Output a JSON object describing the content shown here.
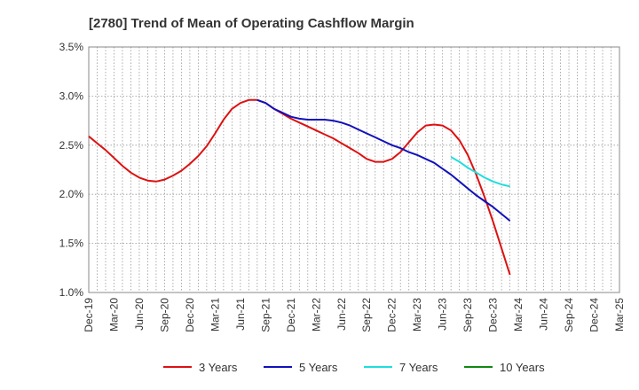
{
  "chart_data": {
    "type": "line",
    "title": "[2780]  Trend of Mean of Operating Cashflow Margin",
    "xlabel": "",
    "ylabel": "",
    "ylim": [
      1.0,
      3.5
    ],
    "grid": true,
    "legend_position": "bottom",
    "y_ticks": [
      {
        "value": 1.0,
        "label": "1.0%"
      },
      {
        "value": 1.5,
        "label": "1.5%"
      },
      {
        "value": 2.0,
        "label": "2.0%"
      },
      {
        "value": 2.5,
        "label": "2.5%"
      },
      {
        "value": 3.0,
        "label": "3.0%"
      },
      {
        "value": 3.5,
        "label": "3.5%"
      }
    ],
    "x_tick_labels": [
      "Dec-19",
      "Mar-20",
      "Jun-20",
      "Sep-20",
      "Dec-20",
      "Mar-21",
      "Jun-21",
      "Sep-21",
      "Dec-21",
      "Mar-22",
      "Jun-22",
      "Sep-22",
      "Dec-22",
      "Mar-23",
      "Jun-23",
      "Sep-23",
      "Dec-23",
      "Mar-24",
      "Jun-24",
      "Sep-24",
      "Dec-24",
      "Mar-25"
    ],
    "series": [
      {
        "name": "3 Years",
        "color": "#dd1111",
        "points": [
          [
            0,
            2.59
          ],
          [
            1,
            2.52
          ],
          [
            2,
            2.45
          ],
          [
            3,
            2.37
          ],
          [
            4,
            2.29
          ],
          [
            5,
            2.22
          ],
          [
            6,
            2.17
          ],
          [
            7,
            2.14
          ],
          [
            8,
            2.13
          ],
          [
            9,
            2.15
          ],
          [
            10,
            2.19
          ],
          [
            11,
            2.24
          ],
          [
            12,
            2.31
          ],
          [
            13,
            2.39
          ],
          [
            14,
            2.49
          ],
          [
            15,
            2.62
          ],
          [
            16,
            2.76
          ],
          [
            17,
            2.87
          ],
          [
            18,
            2.93
          ],
          [
            19,
            2.96
          ],
          [
            20,
            2.96
          ],
          [
            21,
            2.93
          ],
          [
            22,
            2.87
          ],
          [
            23,
            2.82
          ],
          [
            24,
            2.77
          ],
          [
            25,
            2.73
          ],
          [
            26,
            2.69
          ],
          [
            27,
            2.65
          ],
          [
            28,
            2.61
          ],
          [
            29,
            2.57
          ],
          [
            30,
            2.52
          ],
          [
            31,
            2.47
          ],
          [
            32,
            2.42
          ],
          [
            33,
            2.36
          ],
          [
            34,
            2.33
          ],
          [
            35,
            2.33
          ],
          [
            36,
            2.36
          ],
          [
            37,
            2.43
          ],
          [
            38,
            2.53
          ],
          [
            39,
            2.63
          ],
          [
            40,
            2.7
          ],
          [
            41,
            2.71
          ],
          [
            42,
            2.7
          ],
          [
            43,
            2.65
          ],
          [
            44,
            2.55
          ],
          [
            45,
            2.4
          ],
          [
            46,
            2.2
          ],
          [
            47,
            1.97
          ],
          [
            48,
            1.72
          ],
          [
            49,
            1.45
          ],
          [
            50,
            1.18
          ]
        ]
      },
      {
        "name": "5 Years",
        "color": "#1111bb",
        "points": [
          [
            20,
            2.96
          ],
          [
            21,
            2.93
          ],
          [
            22,
            2.87
          ],
          [
            23,
            2.83
          ],
          [
            24,
            2.79
          ],
          [
            25,
            2.77
          ],
          [
            26,
            2.76
          ],
          [
            27,
            2.76
          ],
          [
            28,
            2.76
          ],
          [
            29,
            2.75
          ],
          [
            30,
            2.73
          ],
          [
            31,
            2.7
          ],
          [
            32,
            2.66
          ],
          [
            33,
            2.62
          ],
          [
            34,
            2.58
          ],
          [
            35,
            2.54
          ],
          [
            36,
            2.5
          ],
          [
            37,
            2.47
          ],
          [
            38,
            2.43
          ],
          [
            39,
            2.4
          ],
          [
            40,
            2.36
          ],
          [
            41,
            2.32
          ],
          [
            42,
            2.26
          ],
          [
            43,
            2.2
          ],
          [
            44,
            2.13
          ],
          [
            45,
            2.06
          ],
          [
            46,
            1.99
          ],
          [
            47,
            1.93
          ],
          [
            48,
            1.87
          ],
          [
            49,
            1.8
          ],
          [
            50,
            1.73
          ]
        ]
      },
      {
        "name": "7 Years",
        "color": "#22dddd",
        "points": [
          [
            43,
            2.38
          ],
          [
            44,
            2.33
          ],
          [
            45,
            2.27
          ],
          [
            46,
            2.22
          ],
          [
            47,
            2.17
          ],
          [
            48,
            2.13
          ],
          [
            49,
            2.1
          ],
          [
            50,
            2.08
          ]
        ]
      },
      {
        "name": "10 Years",
        "color": "#118811",
        "points": []
      }
    ]
  }
}
